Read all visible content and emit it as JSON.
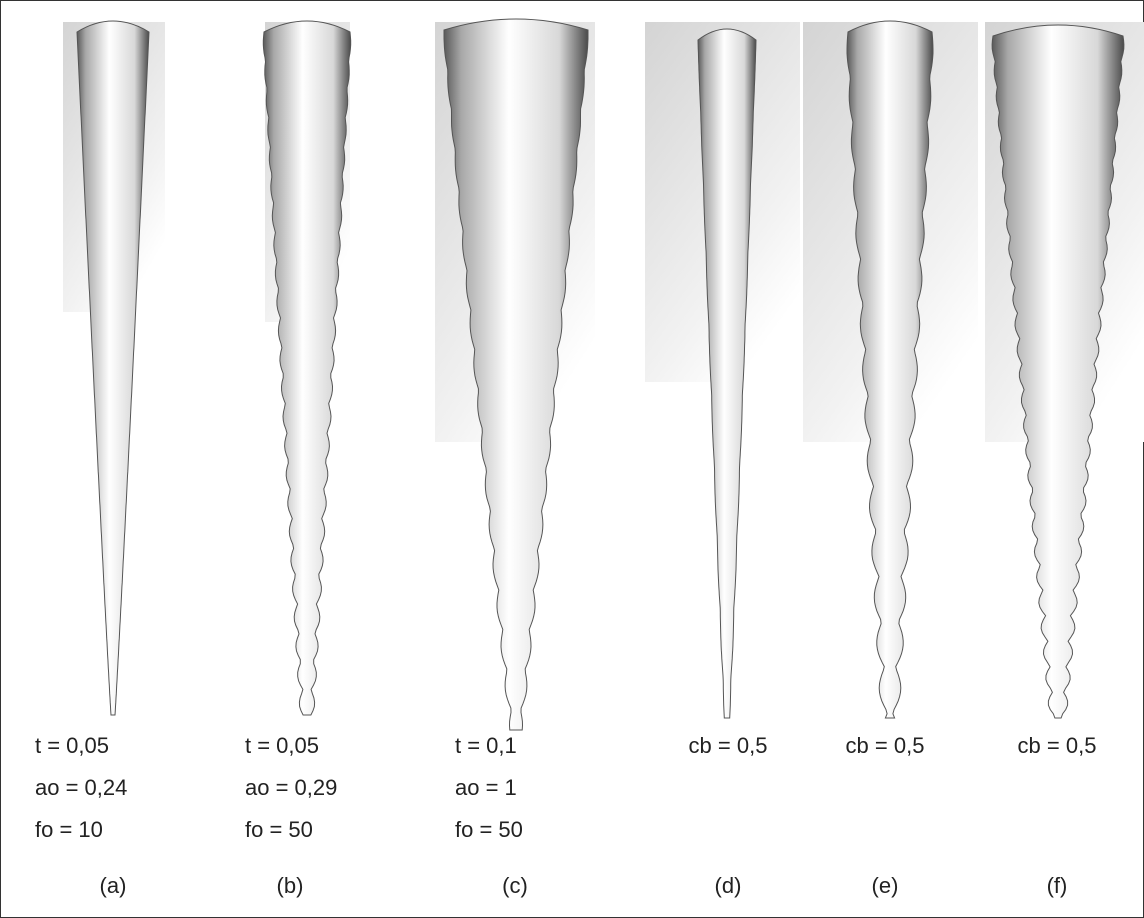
{
  "panels": [
    {
      "params": [
        "t = 0,05",
        "ao = 0,24",
        "fo = 10"
      ],
      "label": "(a)"
    },
    {
      "params": [
        "t = 0,05",
        "ao = 0,29",
        "fo = 50"
      ],
      "label": "(b)"
    },
    {
      "params": [
        "t = 0,1",
        "ao = 1",
        "fo = 50"
      ],
      "label": "(c)"
    },
    {
      "params": [
        "cb = 0,5"
      ],
      "label": "(d)"
    },
    {
      "params": [
        "cb = 0,5"
      ],
      "label": "(e)"
    },
    {
      "params": [
        "cb = 0,5"
      ],
      "label": "(f)"
    }
  ]
}
